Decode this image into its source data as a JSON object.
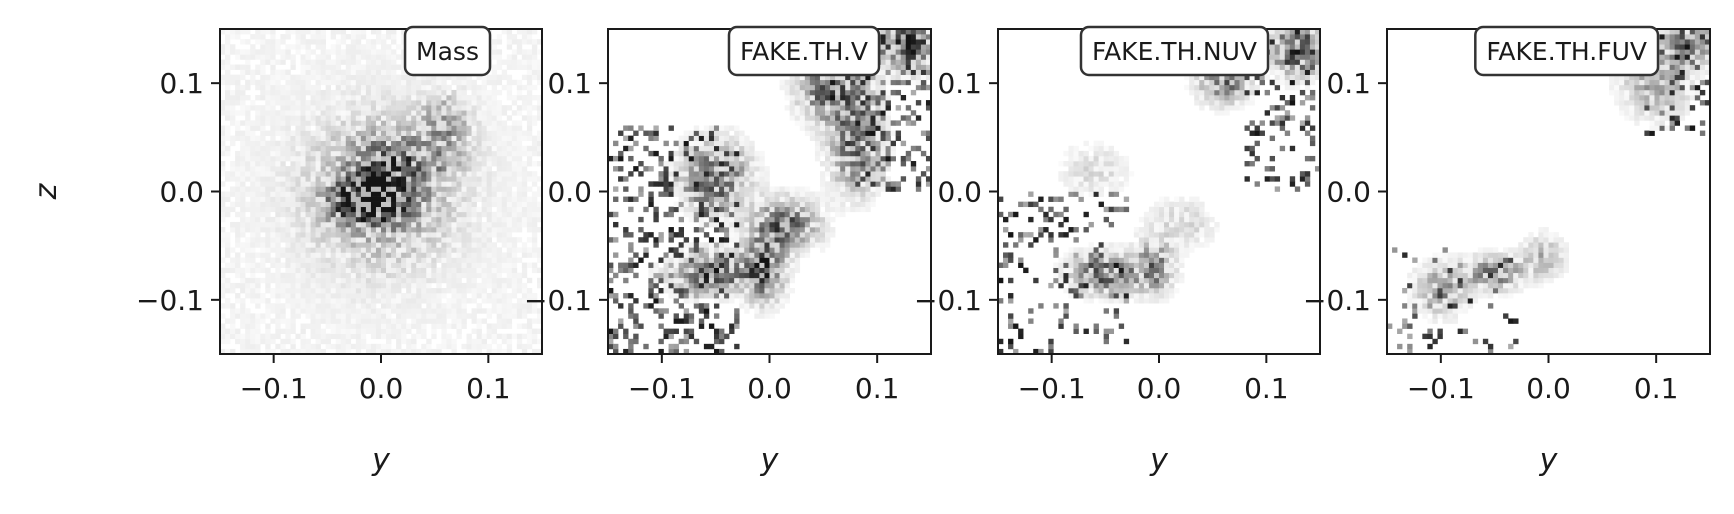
{
  "chart_data": [
    {
      "type": "heatmap",
      "title": "Mass",
      "xlabel": "y",
      "ylabel": "z",
      "xlim": [
        -0.15,
        0.15
      ],
      "ylim": [
        -0.15,
        0.15
      ],
      "xticks": [
        -0.1,
        0.0,
        0.1
      ],
      "yticks": [
        -0.1,
        0.0,
        0.1
      ],
      "xtick_labels": [
        "−0.1",
        "0.0",
        "0.1"
      ],
      "ytick_labels": [
        "−0.1",
        "0.0",
        "0.1"
      ],
      "colormap": "greys",
      "label_box": "top-right",
      "regions": [
        {
          "y": 0.0,
          "z": 0.0,
          "sigma_y": 0.035,
          "sigma_z": 0.035,
          "weight": 0.55
        },
        {
          "y": 0.0,
          "z": 0.0,
          "sigma_y": 0.012,
          "sigma_z": 0.012,
          "weight": 0.9
        },
        {
          "y": -0.02,
          "z": -0.01,
          "sigma_y": 0.02,
          "sigma_z": 0.012,
          "weight": 0.6
        },
        {
          "y": 0.06,
          "z": 0.065,
          "sigma_y": 0.015,
          "sigma_z": 0.015,
          "weight": 0.4
        },
        {
          "y": 0.03,
          "z": 0.03,
          "sigma_y": 0.03,
          "sigma_z": 0.015,
          "weight": 0.35
        },
        {
          "y": 0.0,
          "z": 0.0,
          "sigma_y": 0.09,
          "sigma_z": 0.09,
          "weight": 0.12
        }
      ],
      "background_level": 0.05,
      "background_density": 0.7,
      "peak": {
        "y": 0.0,
        "z": 0.0
      }
    },
    {
      "type": "heatmap",
      "title": "FAKE.TH.V",
      "xlabel": "y",
      "ylabel": "",
      "xlim": [
        -0.15,
        0.15
      ],
      "ylim": [
        -0.15,
        0.15
      ],
      "xticks": [
        -0.1,
        0.0,
        0.1
      ],
      "yticks": [
        -0.1,
        0.0,
        0.1
      ],
      "xtick_labels": [
        "−0.1",
        "0.0",
        "0.1"
      ],
      "ytick_labels": [
        "−0.1",
        "0.0",
        "0.1"
      ],
      "colormap": "greys",
      "label_box": "top-right",
      "regions": [
        {
          "y": -0.05,
          "z": 0.015,
          "sigma_y": 0.02,
          "sigma_z": 0.02,
          "weight": 0.7
        },
        {
          "y": -0.05,
          "z": -0.075,
          "sigma_y": 0.025,
          "sigma_z": 0.012,
          "weight": 0.75
        },
        {
          "y": -0.005,
          "z": -0.07,
          "sigma_y": 0.012,
          "sigma_z": 0.02,
          "weight": 0.75
        },
        {
          "y": 0.015,
          "z": -0.03,
          "sigma_y": 0.02,
          "sigma_z": 0.015,
          "weight": 0.65
        },
        {
          "y": 0.06,
          "z": 0.095,
          "sigma_y": 0.02,
          "sigma_z": 0.02,
          "weight": 0.8
        },
        {
          "y": 0.08,
          "z": 0.04,
          "sigma_y": 0.015,
          "sigma_z": 0.025,
          "weight": 0.7
        },
        {
          "y": 0.13,
          "z": 0.135,
          "sigma_y": 0.015,
          "sigma_z": 0.015,
          "weight": 0.9
        }
      ],
      "scatter_regions": [
        {
          "y_min": -0.15,
          "y_max": -0.03,
          "z_min": -0.15,
          "z_max": 0.06,
          "density": 0.3
        },
        {
          "y_min": 0.08,
          "y_max": 0.15,
          "z_min": 0.0,
          "z_max": 0.15,
          "density": 0.35
        }
      ],
      "peak": {
        "y": 0.13,
        "z": 0.135
      }
    },
    {
      "type": "heatmap",
      "title": "FAKE.TH.NUV",
      "xlabel": "y",
      "ylabel": "",
      "xlim": [
        -0.15,
        0.15
      ],
      "ylim": [
        -0.15,
        0.15
      ],
      "xticks": [
        -0.1,
        0.0,
        0.1
      ],
      "yticks": [
        -0.1,
        0.0,
        0.1
      ],
      "xtick_labels": [
        "−0.1",
        "0.0",
        "0.1"
      ],
      "ytick_labels": [
        "−0.1",
        "0.0",
        "0.1"
      ],
      "colormap": "greys",
      "label_box": "top-right",
      "regions": [
        {
          "y": -0.05,
          "z": -0.075,
          "sigma_y": 0.02,
          "sigma_z": 0.012,
          "weight": 0.7
        },
        {
          "y": -0.005,
          "z": -0.07,
          "sigma_y": 0.012,
          "sigma_z": 0.015,
          "weight": 0.6
        },
        {
          "y": 0.06,
          "z": 0.1,
          "sigma_y": 0.015,
          "sigma_z": 0.012,
          "weight": 0.6
        },
        {
          "y": 0.13,
          "z": 0.13,
          "sigma_y": 0.015,
          "sigma_z": 0.015,
          "weight": 0.75
        },
        {
          "y": -0.06,
          "z": 0.02,
          "sigma_y": 0.02,
          "sigma_z": 0.015,
          "weight": 0.18
        },
        {
          "y": 0.02,
          "z": -0.03,
          "sigma_y": 0.02,
          "sigma_z": 0.015,
          "weight": 0.2
        }
      ],
      "scatter_regions": [
        {
          "y_min": -0.15,
          "y_max": -0.03,
          "z_min": -0.15,
          "z_max": 0.0,
          "density": 0.2
        },
        {
          "y_min": 0.08,
          "y_max": 0.15,
          "z_min": 0.0,
          "z_max": 0.15,
          "density": 0.2
        }
      ],
      "peak": {
        "y": 0.13,
        "z": 0.13
      }
    },
    {
      "type": "heatmap",
      "title": "FAKE.TH.FUV",
      "xlabel": "y",
      "ylabel": "",
      "xlim": [
        -0.15,
        0.15
      ],
      "ylim": [
        -0.15,
        0.15
      ],
      "xticks": [
        -0.1,
        0.0,
        0.1
      ],
      "yticks": [
        -0.1,
        0.0,
        0.1
      ],
      "xtick_labels": [
        "−0.1",
        "0.0",
        "0.1"
      ],
      "ytick_labels": [
        "−0.1",
        "0.0",
        "0.1"
      ],
      "colormap": "greys",
      "label_box": "top-right",
      "regions": [
        {
          "y": -0.05,
          "z": -0.075,
          "sigma_y": 0.018,
          "sigma_z": 0.01,
          "weight": 0.55
        },
        {
          "y": -0.005,
          "z": -0.06,
          "sigma_y": 0.012,
          "sigma_z": 0.012,
          "weight": 0.35
        },
        {
          "y": 0.1,
          "z": 0.1,
          "sigma_y": 0.02,
          "sigma_z": 0.02,
          "weight": 0.4
        },
        {
          "y": 0.13,
          "z": 0.135,
          "sigma_y": 0.015,
          "sigma_z": 0.012,
          "weight": 0.7
        },
        {
          "y": -0.1,
          "z": -0.09,
          "sigma_y": 0.015,
          "sigma_z": 0.015,
          "weight": 0.45
        }
      ],
      "scatter_regions": [
        {
          "y_min": -0.15,
          "y_max": -0.03,
          "z_min": -0.15,
          "z_max": -0.05,
          "density": 0.12
        },
        {
          "y_min": 0.09,
          "y_max": 0.15,
          "z_min": 0.05,
          "z_max": 0.15,
          "density": 0.15
        }
      ],
      "peak": {
        "y": 0.13,
        "z": 0.135
      }
    }
  ]
}
